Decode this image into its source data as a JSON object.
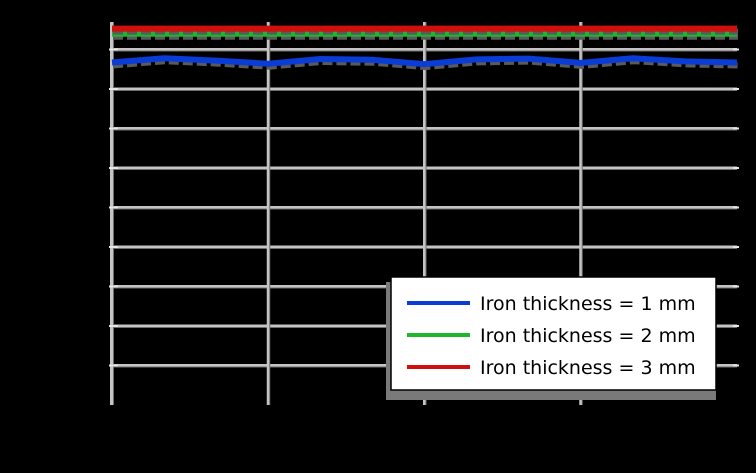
{
  "chart_data": {
    "type": "line",
    "title": "",
    "xlabel": "",
    "ylabel": "",
    "xlim": [
      0,
      360
    ],
    "ylim": [
      0,
      100
    ],
    "x_ticks": [
      0,
      90,
      180,
      270
    ],
    "y_ticks": [
      10,
      20,
      30,
      40,
      50,
      60,
      70,
      80,
      90
    ],
    "grid": true,
    "legend_position": "lower-right",
    "series": [
      {
        "name": "Iron thickness = 1 mm",
        "color": "#0a3cd6",
        "x": [
          0,
          30,
          60,
          90,
          120,
          150,
          180,
          210,
          240,
          270,
          300,
          330,
          360
        ],
        "y": [
          86.7,
          87.8,
          87.2,
          86.4,
          87.6,
          87.4,
          86.3,
          87.5,
          87.7,
          86.6,
          87.8,
          87.0,
          86.7
        ]
      },
      {
        "name": "Iron thickness = 2 mm",
        "color": "#1fb52d",
        "x": [
          0,
          30,
          60,
          90,
          120,
          150,
          180,
          210,
          240,
          270,
          300,
          330,
          360
        ],
        "y": [
          94.0,
          94.0,
          94.0,
          94.0,
          94.0,
          94.0,
          94.0,
          94.0,
          94.0,
          94.0,
          94.0,
          94.0,
          94.0
        ]
      },
      {
        "name": "Iron thickness = 3 mm",
        "color": "#d10f0f",
        "x": [
          0,
          30,
          60,
          90,
          120,
          150,
          180,
          210,
          240,
          270,
          300,
          330,
          360
        ],
        "y": [
          95.3,
          95.3,
          95.3,
          95.3,
          95.3,
          95.3,
          95.3,
          95.3,
          95.3,
          95.3,
          95.3,
          95.3,
          95.3
        ]
      }
    ]
  }
}
